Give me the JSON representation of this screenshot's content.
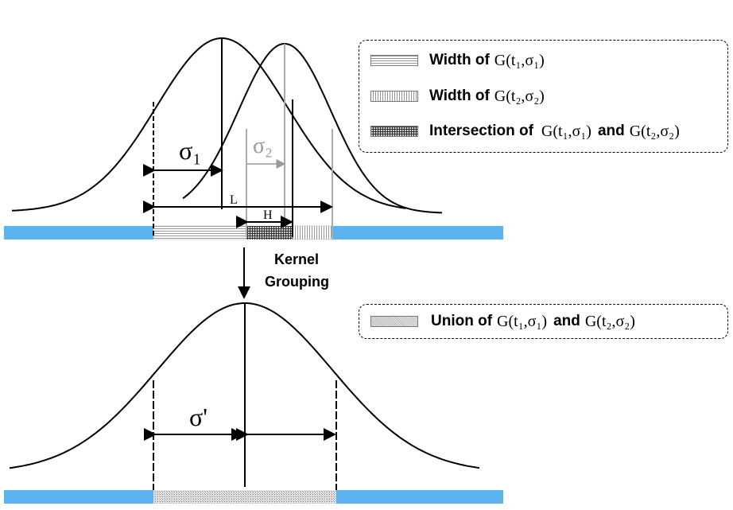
{
  "colors": {
    "bar": "#5bb4f0",
    "curve": "#000000",
    "width2": "#999999",
    "dashed_border": "#000000"
  },
  "top": {
    "sigma1_label": "σ₁",
    "sigma2_label": "σ₂",
    "L_label": "L",
    "H_label": "H"
  },
  "arrow": {
    "line1": "Kernel",
    "line2": "Grouping"
  },
  "bottom": {
    "sigma_prime_label": "σ'"
  },
  "legend_top": {
    "items": [
      {
        "label": "Width of",
        "formula": "G(t₁,σ₁)"
      },
      {
        "label": "Width of",
        "formula": "G(t₂,σ₂)"
      },
      {
        "label": "Intersection of",
        "formula1": "G(t₁,σ₁)",
        "and": "and",
        "formula2": "G(t₂,σ₂)"
      }
    ]
  },
  "legend_bottom": {
    "items": [
      {
        "label": "Union of",
        "formula1": "G(t₁,σ₁)",
        "and": "and",
        "formula2": "G(t₂,σ₂)"
      }
    ]
  }
}
